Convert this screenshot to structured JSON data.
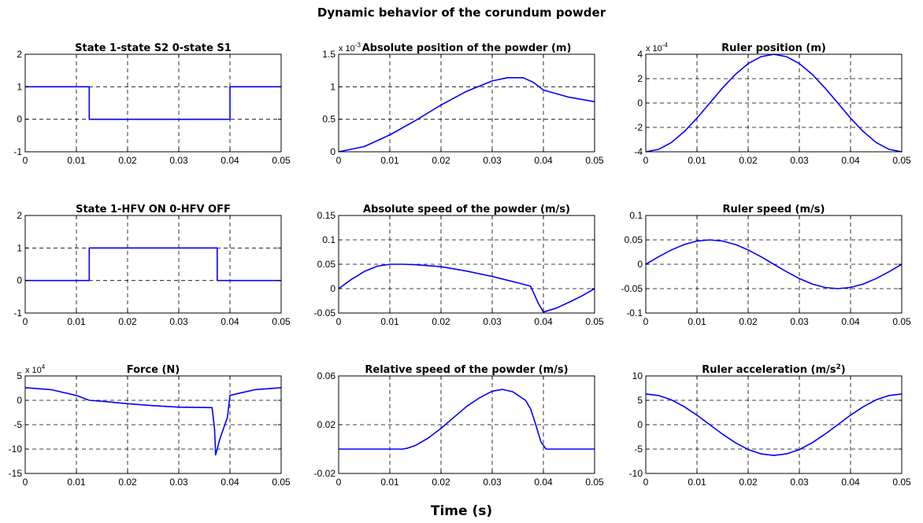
{
  "figure": {
    "title": "Dynamic behavior of the corundum powder",
    "xlabel": "Time (s)"
  },
  "chart_data": [
    {
      "type": "line",
      "title": "State  1-state S2  0-state S1",
      "xlim": [
        0,
        0.05
      ],
      "ylim": [
        -1,
        2
      ],
      "xticks": [
        "0",
        "0.01",
        "0.02",
        "0.03",
        "0.04",
        "0.05"
      ],
      "yticks": [
        {
          "v": -1,
          "label": "-1"
        },
        {
          "v": 0,
          "label": "0"
        },
        {
          "v": 1,
          "label": "1"
        },
        {
          "v": 2,
          "label": "2"
        }
      ],
      "exponent": "",
      "grid": true,
      "color": "#0000ff",
      "x": [
        0,
        0.0125,
        0.0125,
        0.04,
        0.04,
        0.05
      ],
      "y": [
        1,
        1,
        0,
        0,
        1,
        1
      ]
    },
    {
      "type": "line",
      "title": "Absolute position of the powder (m)",
      "xlim": [
        0,
        0.05
      ],
      "ylim": [
        0,
        1.5
      ],
      "xticks": [
        "0",
        "0.01",
        "0.02",
        "0.03",
        "0.04",
        "0.05"
      ],
      "yticks": [
        {
          "v": 0,
          "label": "0"
        },
        {
          "v": 0.5,
          "label": "0.5"
        },
        {
          "v": 1,
          "label": "1"
        },
        {
          "v": 1.5,
          "label": "1.5"
        }
      ],
      "exponent": "x 10-3",
      "grid": true,
      "color": "#0000ff",
      "x": [
        0,
        0.005,
        0.01,
        0.015,
        0.02,
        0.025,
        0.03,
        0.033,
        0.036,
        0.038,
        0.04,
        0.045,
        0.05
      ],
      "y": [
        0,
        0.08,
        0.26,
        0.48,
        0.72,
        0.93,
        1.09,
        1.14,
        1.14,
        1.07,
        0.95,
        0.84,
        0.77
      ]
    },
    {
      "type": "line",
      "title": "Ruler position (m)",
      "xlim": [
        0,
        0.05
      ],
      "ylim": [
        -4,
        4
      ],
      "xticks": [
        "0",
        "0.01",
        "0.02",
        "0.03",
        "0.04",
        "0.05"
      ],
      "yticks": [
        {
          "v": -4,
          "label": "-4"
        },
        {
          "v": -2,
          "label": "-2"
        },
        {
          "v": 0,
          "label": "0"
        },
        {
          "v": 2,
          "label": "2"
        },
        {
          "v": 4,
          "label": "4"
        }
      ],
      "exponent": "x 10-4",
      "grid": true,
      "color": "#0000ff",
      "x": [
        0,
        0.0025,
        0.005,
        0.0075,
        0.01,
        0.0125,
        0.015,
        0.0175,
        0.02,
        0.0225,
        0.025,
        0.0275,
        0.03,
        0.0325,
        0.035,
        0.0375,
        0.04,
        0.0425,
        0.045,
        0.0475,
        0.05
      ],
      "y": [
        -4.0,
        -3.8,
        -3.24,
        -2.35,
        -1.24,
        0.0,
        1.24,
        2.35,
        3.24,
        3.8,
        4.0,
        3.8,
        3.24,
        2.35,
        1.24,
        0.0,
        -1.24,
        -2.35,
        -3.24,
        -3.8,
        -4.0
      ]
    },
    {
      "type": "line",
      "title": "State  1-HFV ON   0-HFV OFF",
      "xlim": [
        0,
        0.05
      ],
      "ylim": [
        -1,
        2
      ],
      "xticks": [
        "0",
        "0.01",
        "0.02",
        "0.03",
        "0.04",
        "0.05"
      ],
      "yticks": [
        {
          "v": -1,
          "label": "-1"
        },
        {
          "v": 0,
          "label": "0"
        },
        {
          "v": 1,
          "label": "1"
        },
        {
          "v": 2,
          "label": "2"
        }
      ],
      "exponent": "",
      "grid": true,
      "color": "#0000ff",
      "x": [
        0,
        0.0125,
        0.0125,
        0.0375,
        0.0375,
        0.05
      ],
      "y": [
        0,
        0,
        1,
        1,
        0,
        0
      ]
    },
    {
      "type": "line",
      "title": "Absolute speed of the powder (m/s)",
      "xlim": [
        0,
        0.05
      ],
      "ylim": [
        -0.05,
        0.15
      ],
      "xticks": [
        "0",
        "0.01",
        "0.02",
        "0.03",
        "0.04",
        "0.05"
      ],
      "yticks": [
        {
          "v": -0.05,
          "label": "-0.05"
        },
        {
          "v": 0,
          "label": "0"
        },
        {
          "v": 0.05,
          "label": "0.05"
        },
        {
          "v": 0.1,
          "label": "0.1"
        },
        {
          "v": 0.15,
          "label": "0.15"
        }
      ],
      "exponent": "",
      "grid": true,
      "color": "#0000ff",
      "x": [
        0,
        0.0025,
        0.005,
        0.0075,
        0.01,
        0.0125,
        0.015,
        0.02,
        0.025,
        0.03,
        0.035,
        0.0375,
        0.039,
        0.04,
        0.0425,
        0.045,
        0.0475,
        0.05
      ],
      "y": [
        0,
        0.019,
        0.035,
        0.046,
        0.05,
        0.05,
        0.049,
        0.045,
        0.036,
        0.025,
        0.012,
        0.005,
        -0.03,
        -0.048,
        -0.04,
        -0.028,
        -0.015,
        0.0
      ]
    },
    {
      "type": "line",
      "title": "Ruler speed (m/s)",
      "xlim": [
        0,
        0.05
      ],
      "ylim": [
        -0.1,
        0.1
      ],
      "xticks": [
        "0",
        "0.01",
        "0.02",
        "0.03",
        "0.04",
        "0.05"
      ],
      "yticks": [
        {
          "v": -0.1,
          "label": "-0.1"
        },
        {
          "v": -0.05,
          "label": "-0.05"
        },
        {
          "v": 0,
          "label": "0"
        },
        {
          "v": 0.05,
          "label": "0.05"
        },
        {
          "v": 0.1,
          "label": "0.1"
        }
      ],
      "exponent": "",
      "grid": true,
      "color": "#0000ff",
      "x": [
        0,
        0.0025,
        0.005,
        0.0075,
        0.01,
        0.0125,
        0.015,
        0.0175,
        0.02,
        0.0225,
        0.025,
        0.0275,
        0.03,
        0.0325,
        0.035,
        0.0375,
        0.04,
        0.0425,
        0.045,
        0.0475,
        0.05
      ],
      "y": [
        0.0,
        0.0155,
        0.0294,
        0.0405,
        0.0476,
        0.05,
        0.0476,
        0.0405,
        0.0294,
        0.0155,
        0.0,
        -0.0155,
        -0.0294,
        -0.0405,
        -0.0476,
        -0.05,
        -0.0476,
        -0.0405,
        -0.0294,
        -0.0155,
        0.0
      ]
    },
    {
      "type": "line",
      "title": "Force (N)",
      "xlim": [
        0,
        0.05
      ],
      "ylim": [
        -15,
        5
      ],
      "xticks": [
        "0",
        "0.01",
        "0.02",
        "0.03",
        "0.04",
        "0.05"
      ],
      "yticks": [
        {
          "v": -15,
          "label": "-15"
        },
        {
          "v": -10,
          "label": "-10"
        },
        {
          "v": -5,
          "label": "-5"
        },
        {
          "v": 0,
          "label": "0"
        },
        {
          "v": 5,
          "label": "5"
        }
      ],
      "exponent": "x 10 4",
      "grid": true,
      "color": "#0000ff",
      "x": [
        0,
        0.005,
        0.01,
        0.0125,
        0.015,
        0.02,
        0.025,
        0.03,
        0.0365,
        0.037,
        0.0372,
        0.038,
        0.039,
        0.0395,
        0.04,
        0.042,
        0.045,
        0.05
      ],
      "y": [
        2.6,
        2.2,
        1.0,
        0.0,
        -0.2,
        -0.7,
        -1.1,
        -1.4,
        -1.5,
        -6.0,
        -11.2,
        -8.0,
        -5.0,
        -3.5,
        1.0,
        1.5,
        2.2,
        2.6
      ]
    },
    {
      "type": "line",
      "title": "Relative speed of the powder (m/s)",
      "xlim": [
        0,
        0.05
      ],
      "ylim": [
        -0.02,
        0.06
      ],
      "xticks": [
        "0",
        "0.01",
        "0.02",
        "0.03",
        "0.04",
        "0.05"
      ],
      "yticks": [
        {
          "v": -0.02,
          "label": "-0.02"
        },
        {
          "v": 0.02,
          "label": "0.02"
        },
        {
          "v": 0.06,
          "label": "0.06"
        }
      ],
      "exponent": "",
      "grid": true,
      "color": "#0000ff",
      "x": [
        0,
        0.0125,
        0.0135,
        0.015,
        0.0175,
        0.02,
        0.0225,
        0.025,
        0.0275,
        0.03,
        0.032,
        0.034,
        0.0365,
        0.0375,
        0.0385,
        0.0395,
        0.0405,
        0.05
      ],
      "y": [
        0,
        0,
        0.0008,
        0.003,
        0.009,
        0.017,
        0.026,
        0.035,
        0.042,
        0.0475,
        0.049,
        0.047,
        0.04,
        0.033,
        0.02,
        0.006,
        0,
        0
      ]
    },
    {
      "type": "line",
      "title": "Ruler acceleration (m/s",
      "title_sup": "2",
      "title_end": ")",
      "xlim": [
        0,
        0.05
      ],
      "ylim": [
        -10,
        10
      ],
      "xticks": [
        "0",
        "0.01",
        "0.02",
        "0.03",
        "0.04",
        "0.05"
      ],
      "yticks": [
        {
          "v": -10,
          "label": "-10"
        },
        {
          "v": -5,
          "label": "-5"
        },
        {
          "v": 0,
          "label": "0"
        },
        {
          "v": 5,
          "label": "5"
        },
        {
          "v": 10,
          "label": "10"
        }
      ],
      "exponent": "",
      "grid": true,
      "color": "#0000ff",
      "x": [
        0,
        0.0025,
        0.005,
        0.0075,
        0.01,
        0.0125,
        0.015,
        0.0175,
        0.02,
        0.0225,
        0.025,
        0.0275,
        0.03,
        0.0325,
        0.035,
        0.0375,
        0.04,
        0.0425,
        0.045,
        0.0475,
        0.05
      ],
      "y": [
        6.3,
        5.99,
        5.1,
        3.7,
        1.95,
        0.0,
        -1.95,
        -3.7,
        -5.1,
        -5.99,
        -6.3,
        -5.99,
        -5.1,
        -3.7,
        -1.95,
        0.0,
        1.95,
        3.7,
        5.1,
        5.99,
        6.3
      ]
    }
  ]
}
